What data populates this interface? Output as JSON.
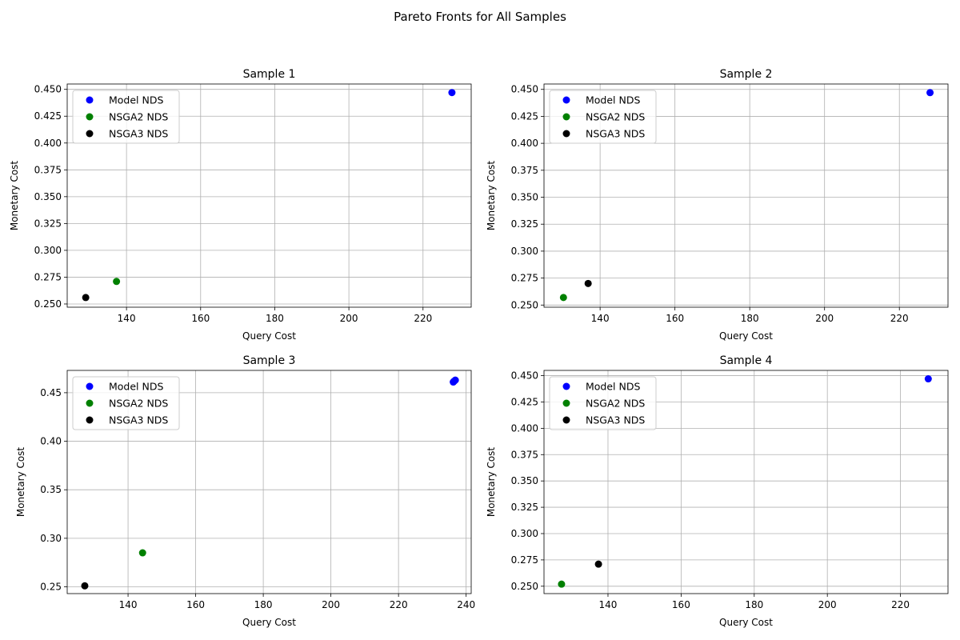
{
  "figure": {
    "suptitle": "Pareto Fronts for All Samples"
  },
  "chart_data": [
    {
      "type": "scatter",
      "title": "Sample 1",
      "xlabel": "Query Cost",
      "ylabel": "Monetary Cost",
      "xlim": [
        124,
        233
      ],
      "ylim": [
        0.247,
        0.455
      ],
      "xticks": [
        140,
        160,
        180,
        200,
        220
      ],
      "yticks": [
        0.25,
        0.275,
        0.3,
        0.325,
        0.35,
        0.375,
        0.4,
        0.425,
        0.45
      ],
      "ytick_labels": [
        "0.250",
        "0.275",
        "0.300",
        "0.325",
        "0.350",
        "0.375",
        "0.400",
        "0.425",
        "0.450"
      ],
      "grid": true,
      "legend_position": "top-left",
      "series": [
        {
          "name": "Model NDS",
          "color": "#0000ff",
          "points": [
            [
              227.8,
              0.447
            ]
          ]
        },
        {
          "name": "NSGA2 NDS",
          "color": "#008000",
          "points": [
            [
              137.3,
              0.271
            ]
          ]
        },
        {
          "name": "NSGA3 NDS",
          "color": "#000000",
          "points": [
            [
              129.0,
              0.256
            ]
          ]
        }
      ]
    },
    {
      "type": "scatter",
      "title": "Sample 2",
      "xlabel": "Query Cost",
      "ylabel": "Monetary Cost",
      "xlim": [
        125,
        233
      ],
      "ylim": [
        0.248,
        0.455
      ],
      "xticks": [
        140,
        160,
        180,
        200,
        220
      ],
      "yticks": [
        0.25,
        0.275,
        0.3,
        0.325,
        0.35,
        0.375,
        0.4,
        0.425,
        0.45
      ],
      "ytick_labels": [
        "0.250",
        "0.275",
        "0.300",
        "0.325",
        "0.350",
        "0.375",
        "0.400",
        "0.425",
        "0.450"
      ],
      "grid": true,
      "legend_position": "top-left",
      "series": [
        {
          "name": "Model NDS",
          "color": "#0000ff",
          "points": [
            [
              228.2,
              0.447
            ]
          ]
        },
        {
          "name": "NSGA2 NDS",
          "color": "#008000",
          "points": [
            [
              130.2,
              0.257
            ]
          ]
        },
        {
          "name": "NSGA3 NDS",
          "color": "#000000",
          "points": [
            [
              136.8,
              0.27
            ]
          ]
        }
      ]
    },
    {
      "type": "scatter",
      "title": "Sample 3",
      "xlabel": "Query Cost",
      "ylabel": "Monetary Cost",
      "xlim": [
        122,
        241.5
      ],
      "ylim": [
        0.243,
        0.473
      ],
      "xticks": [
        140,
        160,
        180,
        200,
        220,
        240
      ],
      "yticks": [
        0.25,
        0.3,
        0.35,
        0.4,
        0.45
      ],
      "ytick_labels": [
        "0.25",
        "0.30",
        "0.35",
        "0.40",
        "0.45"
      ],
      "grid": true,
      "legend_position": "top-left",
      "series": [
        {
          "name": "Model NDS",
          "color": "#0000ff",
          "points": [
            [
              236.5,
              0.462
            ],
            [
              236.8,
              0.463
            ],
            [
              236.2,
              0.461
            ]
          ]
        },
        {
          "name": "NSGA2 NDS",
          "color": "#008000",
          "points": [
            [
              144.3,
              0.285
            ]
          ]
        },
        {
          "name": "NSGA3 NDS",
          "color": "#000000",
          "points": [
            [
              127.2,
              0.251
            ]
          ]
        }
      ]
    },
    {
      "type": "scatter",
      "title": "Sample 4",
      "xlabel": "Query Cost",
      "ylabel": "Monetary Cost",
      "xlim": [
        122.5,
        233
      ],
      "ylim": [
        0.243,
        0.455
      ],
      "xticks": [
        140,
        160,
        180,
        200,
        220
      ],
      "yticks": [
        0.25,
        0.275,
        0.3,
        0.325,
        0.35,
        0.375,
        0.4,
        0.425,
        0.45
      ],
      "ytick_labels": [
        "0.250",
        "0.275",
        "0.300",
        "0.325",
        "0.350",
        "0.375",
        "0.400",
        "0.425",
        "0.450"
      ],
      "grid": true,
      "legend_position": "top-left",
      "series": [
        {
          "name": "Model NDS",
          "color": "#0000ff",
          "points": [
            [
              227.6,
              0.447
            ]
          ]
        },
        {
          "name": "NSGA2 NDS",
          "color": "#008000",
          "points": [
            [
              127.3,
              0.252
            ]
          ]
        },
        {
          "name": "NSGA3 NDS",
          "color": "#000000",
          "points": [
            [
              137.4,
              0.271
            ]
          ]
        }
      ]
    }
  ]
}
